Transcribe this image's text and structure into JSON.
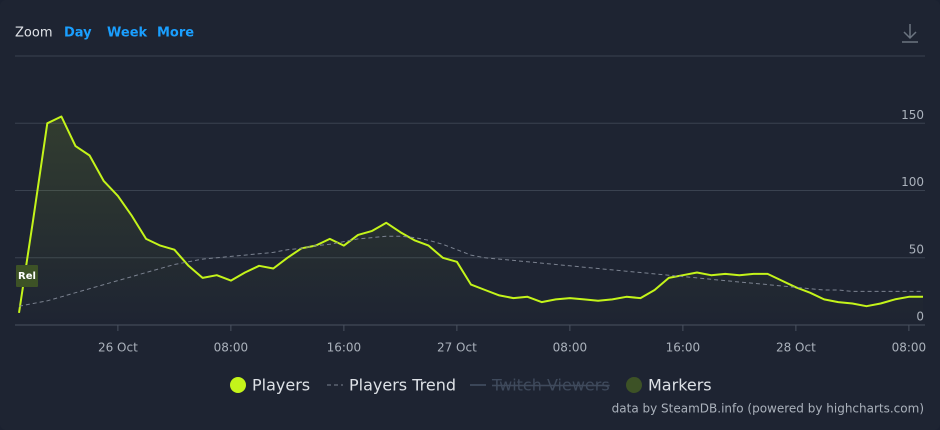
{
  "chart_data": {
    "type": "line",
    "toolbar": {
      "label": "Zoom",
      "buttons": [
        "Day",
        "Week",
        "More"
      ]
    },
    "categories": [
      null,
      null,
      null,
      null,
      null,
      null,
      null,
      "26 Oct",
      null,
      null,
      null,
      null,
      null,
      null,
      null,
      "08:00",
      null,
      null,
      null,
      null,
      null,
      null,
      null,
      "16:00",
      null,
      null,
      null,
      null,
      null,
      null,
      null,
      "27 Oct",
      null,
      null,
      null,
      null,
      null,
      null,
      null,
      "08:00",
      null,
      null,
      null,
      null,
      null,
      null,
      null,
      "16:00",
      null,
      null,
      null,
      null,
      null,
      null,
      null,
      "28 Oct",
      null,
      null,
      null,
      null,
      null,
      null,
      null,
      "08:00",
      null
    ],
    "series": [
      {
        "name": "Players",
        "color": "#c4f41a",
        "values": [
          9,
          78,
          150,
          155,
          133,
          126,
          107,
          96,
          81,
          64,
          59,
          56,
          44,
          35,
          37,
          33,
          39,
          44,
          42,
          50,
          57,
          59,
          64,
          59,
          67,
          70,
          76,
          69,
          63,
          59,
          50,
          47,
          30,
          26,
          22,
          20,
          21,
          17,
          19,
          20,
          19,
          18,
          19,
          21,
          20,
          26,
          35,
          37,
          39,
          37,
          38,
          37,
          38,
          38,
          33,
          28,
          24,
          19,
          17,
          16,
          14,
          16,
          19,
          21,
          21
        ]
      },
      {
        "name": "Players Trend",
        "color": "#7b8290",
        "dashed": true,
        "values": [
          14,
          16,
          18,
          21,
          24,
          27,
          30,
          33,
          36,
          39,
          42,
          45,
          47,
          49,
          50,
          51,
          52,
          53,
          54,
          56,
          57,
          59,
          60,
          62,
          64,
          65,
          66,
          66,
          65,
          63,
          60,
          56,
          52,
          50,
          49,
          48,
          47,
          46,
          45,
          44,
          43,
          42,
          41,
          40,
          39,
          38,
          37,
          36,
          35,
          34,
          33,
          32,
          31,
          30,
          29,
          28,
          27,
          26,
          26,
          25,
          25,
          25,
          25,
          25,
          25
        ]
      },
      {
        "name": "Twitch Viewers",
        "color": "#3b4658",
        "visible": false
      },
      {
        "name": "Markers",
        "color": "#3d5226",
        "markers": [
          "Rel"
        ]
      }
    ],
    "ylim": [
      0,
      200
    ],
    "yticks": [
      0,
      50,
      100,
      150
    ],
    "grid": true,
    "credit": "data by SteamDB.info (powered by highcharts.com)"
  }
}
